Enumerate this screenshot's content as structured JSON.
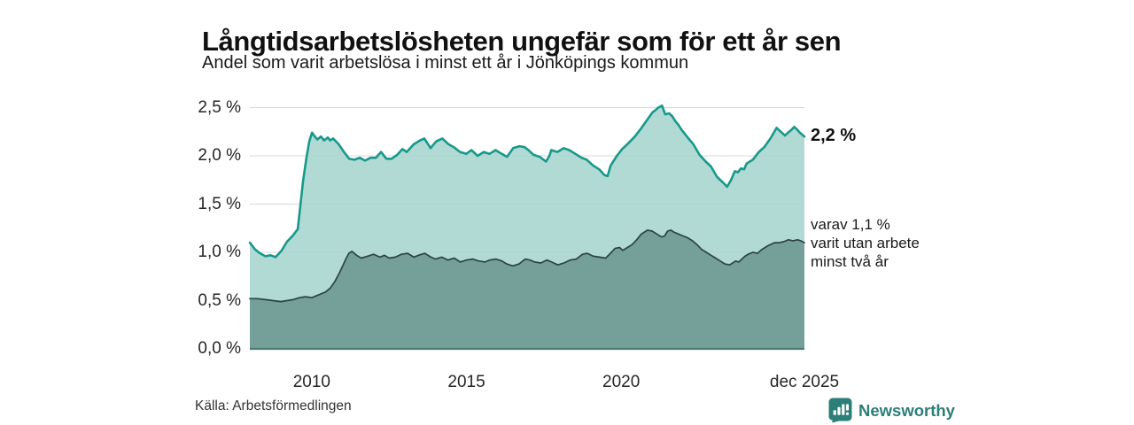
{
  "chart_data": {
    "type": "area",
    "title": "Långtidsarbetslösheten ungefär som för ett år sen",
    "subtitle": "Andel som varit arbetslösa i minst ett år i Jönköpings kommun",
    "x_axis": {
      "range": [
        2008.0,
        2025.92
      ],
      "ticks": [
        {
          "v": 2010,
          "label": "2010"
        },
        {
          "v": 2015,
          "label": "2015"
        },
        {
          "v": 2020,
          "label": "2020"
        },
        {
          "v": 2025.92,
          "label": "dec 2025"
        }
      ]
    },
    "y_axis": {
      "range": [
        0,
        2.5
      ],
      "unit": "%",
      "gridlines": true,
      "ticks": [
        {
          "v": 0,
          "label": "0,0 %"
        },
        {
          "v": 0.5,
          "label": "0,5 %"
        },
        {
          "v": 1.0,
          "label": "1,0 %"
        },
        {
          "v": 1.5,
          "label": "1,5 %"
        },
        {
          "v": 2.0,
          "label": "2,0 %"
        },
        {
          "v": 2.5,
          "label": "2,5 %"
        }
      ]
    },
    "grid_color": "#d8d8d8",
    "baseline_color": "#4e7b74",
    "series": [
      {
        "name": "Andel som varit arbetslösa i minst ett år",
        "line_color": "#17998b",
        "fill_color": "#a9d6d0",
        "fill_opacity": 0.9,
        "line_width": 2.6,
        "end_value": 2.2,
        "end_label": "2,2 %",
        "points": [
          [
            2008.0,
            1.1
          ],
          [
            2008.17,
            1.03
          ],
          [
            2008.33,
            0.99
          ],
          [
            2008.5,
            0.96
          ],
          [
            2008.67,
            0.97
          ],
          [
            2008.83,
            0.95
          ],
          [
            2008.92,
            0.98
          ],
          [
            2009.03,
            1.02
          ],
          [
            2009.2,
            1.11
          ],
          [
            2009.38,
            1.17
          ],
          [
            2009.55,
            1.24
          ],
          [
            2009.72,
            1.74
          ],
          [
            2009.83,
            1.98
          ],
          [
            2009.92,
            2.15
          ],
          [
            2010.01,
            2.24
          ],
          [
            2010.1,
            2.2
          ],
          [
            2010.18,
            2.17
          ],
          [
            2010.3,
            2.2
          ],
          [
            2010.4,
            2.16
          ],
          [
            2010.52,
            2.19
          ],
          [
            2010.6,
            2.16
          ],
          [
            2010.69,
            2.18
          ],
          [
            2010.87,
            2.12
          ],
          [
            2011.04,
            2.04
          ],
          [
            2011.21,
            1.97
          ],
          [
            2011.38,
            1.96
          ],
          [
            2011.55,
            1.98
          ],
          [
            2011.72,
            1.95
          ],
          [
            2011.9,
            1.98
          ],
          [
            2012.07,
            1.98
          ],
          [
            2012.24,
            2.04
          ],
          [
            2012.41,
            1.97
          ],
          [
            2012.58,
            1.97
          ],
          [
            2012.76,
            2.01
          ],
          [
            2012.93,
            2.07
          ],
          [
            2013.07,
            2.04
          ],
          [
            2013.3,
            2.12
          ],
          [
            2013.5,
            2.16
          ],
          [
            2013.64,
            2.18
          ],
          [
            2013.84,
            2.08
          ],
          [
            2014.02,
            2.15
          ],
          [
            2014.22,
            2.18
          ],
          [
            2014.42,
            2.12
          ],
          [
            2014.59,
            2.09
          ],
          [
            2014.79,
            2.04
          ],
          [
            2014.99,
            2.02
          ],
          [
            2015.16,
            2.06
          ],
          [
            2015.36,
            2.0
          ],
          [
            2015.56,
            2.04
          ],
          [
            2015.74,
            2.02
          ],
          [
            2015.94,
            2.06
          ],
          [
            2016.14,
            2.02
          ],
          [
            2016.31,
            1.99
          ],
          [
            2016.51,
            2.08
          ],
          [
            2016.71,
            2.1
          ],
          [
            2016.88,
            2.09
          ],
          [
            2017.0,
            2.06
          ],
          [
            2017.17,
            2.01
          ],
          [
            2017.37,
            1.99
          ],
          [
            2017.57,
            1.94
          ],
          [
            2017.68,
            2.0
          ],
          [
            2017.74,
            2.06
          ],
          [
            2017.94,
            2.04
          ],
          [
            2018.14,
            2.08
          ],
          [
            2018.32,
            2.06
          ],
          [
            2018.52,
            2.02
          ],
          [
            2018.72,
            1.98
          ],
          [
            2018.89,
            1.96
          ],
          [
            2019.09,
            1.9
          ],
          [
            2019.29,
            1.86
          ],
          [
            2019.46,
            1.8
          ],
          [
            2019.56,
            1.79
          ],
          [
            2019.66,
            1.9
          ],
          [
            2019.86,
            2.0
          ],
          [
            2020.03,
            2.07
          ],
          [
            2020.23,
            2.13
          ],
          [
            2020.44,
            2.2
          ],
          [
            2020.61,
            2.27
          ],
          [
            2020.81,
            2.36
          ],
          [
            2021.01,
            2.45
          ],
          [
            2021.09,
            2.47
          ],
          [
            2021.2,
            2.5
          ],
          [
            2021.32,
            2.52
          ],
          [
            2021.42,
            2.43
          ],
          [
            2021.55,
            2.44
          ],
          [
            2021.65,
            2.41
          ],
          [
            2021.75,
            2.36
          ],
          [
            2021.85,
            2.32
          ],
          [
            2021.95,
            2.27
          ],
          [
            2022.15,
            2.19
          ],
          [
            2022.33,
            2.12
          ],
          [
            2022.53,
            2.01
          ],
          [
            2022.73,
            1.94
          ],
          [
            2022.9,
            1.89
          ],
          [
            2023.1,
            1.78
          ],
          [
            2023.3,
            1.72
          ],
          [
            2023.42,
            1.68
          ],
          [
            2023.55,
            1.75
          ],
          [
            2023.67,
            1.84
          ],
          [
            2023.77,
            1.83
          ],
          [
            2023.87,
            1.87
          ],
          [
            2023.97,
            1.86
          ],
          [
            2024.05,
            1.92
          ],
          [
            2024.25,
            1.96
          ],
          [
            2024.45,
            2.04
          ],
          [
            2024.62,
            2.09
          ],
          [
            2024.82,
            2.18
          ],
          [
            2025.02,
            2.29
          ],
          [
            2025.12,
            2.26
          ],
          [
            2025.19,
            2.24
          ],
          [
            2025.29,
            2.21
          ],
          [
            2025.39,
            2.24
          ],
          [
            2025.5,
            2.27
          ],
          [
            2025.59,
            2.3
          ],
          [
            2025.69,
            2.27
          ],
          [
            2025.77,
            2.24
          ],
          [
            2025.92,
            2.2
          ]
        ]
      },
      {
        "name": "varav varit utan arbete minst två år",
        "line_color": "#2c4441",
        "fill_color": "#74a099",
        "fill_opacity": 1,
        "line_width": 1.7,
        "end_value": 1.1,
        "end_label": "varav 1,1 %\nvarit utan arbete\nminst två år",
        "points": [
          [
            2008.0,
            0.52
          ],
          [
            2008.25,
            0.52
          ],
          [
            2008.5,
            0.51
          ],
          [
            2008.75,
            0.5
          ],
          [
            2009.0,
            0.49
          ],
          [
            2009.2,
            0.5
          ],
          [
            2009.4,
            0.51
          ],
          [
            2009.6,
            0.53
          ],
          [
            2009.8,
            0.54
          ],
          [
            2010.0,
            0.53
          ],
          [
            2010.15,
            0.55
          ],
          [
            2010.3,
            0.57
          ],
          [
            2010.45,
            0.59
          ],
          [
            2010.6,
            0.63
          ],
          [
            2010.75,
            0.7
          ],
          [
            2010.9,
            0.79
          ],
          [
            2011.0,
            0.86
          ],
          [
            2011.1,
            0.93
          ],
          [
            2011.2,
            0.99
          ],
          [
            2011.3,
            1.01
          ],
          [
            2011.45,
            0.97
          ],
          [
            2011.6,
            0.94
          ],
          [
            2011.8,
            0.96
          ],
          [
            2012.0,
            0.98
          ],
          [
            2012.2,
            0.95
          ],
          [
            2012.35,
            0.97
          ],
          [
            2012.5,
            0.94
          ],
          [
            2012.7,
            0.95
          ],
          [
            2012.9,
            0.98
          ],
          [
            2013.1,
            0.99
          ],
          [
            2013.3,
            0.95
          ],
          [
            2013.45,
            0.97
          ],
          [
            2013.65,
            0.99
          ],
          [
            2013.85,
            0.95
          ],
          [
            2014.0,
            0.93
          ],
          [
            2014.2,
            0.95
          ],
          [
            2014.4,
            0.92
          ],
          [
            2014.6,
            0.94
          ],
          [
            2014.8,
            0.9
          ],
          [
            2015.0,
            0.92
          ],
          [
            2015.2,
            0.93
          ],
          [
            2015.4,
            0.91
          ],
          [
            2015.6,
            0.9
          ],
          [
            2015.75,
            0.92
          ],
          [
            2015.95,
            0.93
          ],
          [
            2016.15,
            0.91
          ],
          [
            2016.3,
            0.88
          ],
          [
            2016.5,
            0.86
          ],
          [
            2016.7,
            0.88
          ],
          [
            2016.9,
            0.93
          ],
          [
            2017.05,
            0.92
          ],
          [
            2017.2,
            0.9
          ],
          [
            2017.4,
            0.89
          ],
          [
            2017.6,
            0.92
          ],
          [
            2017.75,
            0.9
          ],
          [
            2017.95,
            0.87
          ],
          [
            2018.15,
            0.89
          ],
          [
            2018.35,
            0.92
          ],
          [
            2018.55,
            0.93
          ],
          [
            2018.75,
            0.98
          ],
          [
            2018.9,
            0.99
          ],
          [
            2019.1,
            0.96
          ],
          [
            2019.3,
            0.95
          ],
          [
            2019.5,
            0.94
          ],
          [
            2019.65,
            0.99
          ],
          [
            2019.8,
            1.04
          ],
          [
            2019.95,
            1.05
          ],
          [
            2020.05,
            1.02
          ],
          [
            2020.15,
            1.04
          ],
          [
            2020.35,
            1.08
          ],
          [
            2020.5,
            1.13
          ],
          [
            2020.65,
            1.19
          ],
          [
            2020.85,
            1.23
          ],
          [
            2021.0,
            1.22
          ],
          [
            2021.15,
            1.19
          ],
          [
            2021.3,
            1.16
          ],
          [
            2021.4,
            1.17
          ],
          [
            2021.5,
            1.22
          ],
          [
            2021.6,
            1.23
          ],
          [
            2021.7,
            1.21
          ],
          [
            2021.85,
            1.19
          ],
          [
            2022.0,
            1.17
          ],
          [
            2022.15,
            1.15
          ],
          [
            2022.3,
            1.12
          ],
          [
            2022.45,
            1.08
          ],
          [
            2022.6,
            1.03
          ],
          [
            2022.75,
            1.0
          ],
          [
            2022.9,
            0.97
          ],
          [
            2023.05,
            0.94
          ],
          [
            2023.2,
            0.91
          ],
          [
            2023.35,
            0.88
          ],
          [
            2023.5,
            0.87
          ],
          [
            2023.6,
            0.89
          ],
          [
            2023.7,
            0.91
          ],
          [
            2023.8,
            0.9
          ],
          [
            2023.9,
            0.93
          ],
          [
            2024.0,
            0.96
          ],
          [
            2024.1,
            0.98
          ],
          [
            2024.25,
            1.0
          ],
          [
            2024.4,
            0.99
          ],
          [
            2024.55,
            1.03
          ],
          [
            2024.75,
            1.07
          ],
          [
            2024.95,
            1.1
          ],
          [
            2025.1,
            1.1
          ],
          [
            2025.25,
            1.11
          ],
          [
            2025.4,
            1.13
          ],
          [
            2025.55,
            1.12
          ],
          [
            2025.7,
            1.13
          ],
          [
            2025.8,
            1.12
          ],
          [
            2025.92,
            1.1
          ]
        ]
      }
    ]
  },
  "footer": {
    "source": "Källa: Arbetsförmedlingen",
    "brand": {
      "name": "Newsworthy",
      "color": "#2b7f78",
      "icon": "newsworthy-chart-pin-icon"
    }
  }
}
